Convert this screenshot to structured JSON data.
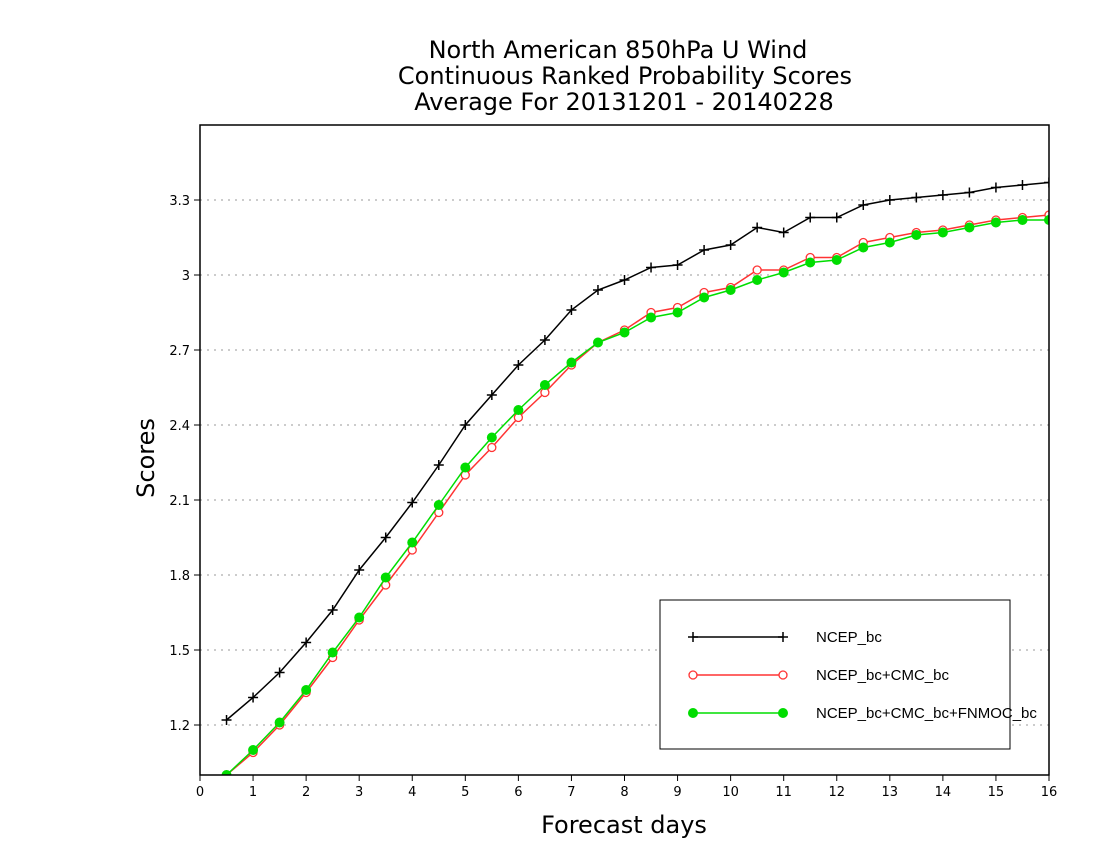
{
  "chart_data": {
    "type": "line",
    "title": [
      "North American 850hPa U Wind",
      "Continuous Ranked Probability Scores",
      "Average For 20131201 - 20140228"
    ],
    "xlabel": "Forecast days",
    "ylabel": "Scores",
    "xlim": [
      0,
      16
    ],
    "ylim": [
      1.0,
      3.6
    ],
    "x_ticks": [
      0,
      1,
      2,
      3,
      4,
      5,
      6,
      7,
      8,
      9,
      10,
      11,
      12,
      13,
      14,
      15,
      16
    ],
    "y_ticks": [
      1.2,
      1.5,
      1.8,
      2.1,
      2.4,
      2.7,
      3.0,
      3.3
    ],
    "y_tick_labels": [
      "1.2",
      "1.5",
      "1.8",
      "2.1",
      "2.4",
      "2.7",
      "3",
      "3.3"
    ],
    "grid": "horizontal dotted",
    "legend_position": "bottom-right",
    "x": [
      0.5,
      1,
      1.5,
      2,
      2.5,
      3,
      3.5,
      4,
      4.5,
      5,
      5.5,
      6,
      6.5,
      7,
      7.5,
      8,
      8.5,
      9,
      9.5,
      10,
      10.5,
      11,
      11.5,
      12,
      12.5,
      13,
      13.5,
      14,
      14.5,
      15,
      15.5,
      16
    ],
    "series": [
      {
        "name": "NCEP_bc",
        "color": "#000000",
        "marker": "plus",
        "values": [
          1.22,
          1.31,
          1.41,
          1.53,
          1.66,
          1.82,
          1.95,
          2.09,
          2.24,
          2.4,
          2.52,
          2.64,
          2.74,
          2.86,
          2.94,
          2.98,
          3.03,
          3.04,
          3.1,
          3.12,
          3.19,
          3.17,
          3.23,
          3.23,
          3.28,
          3.3,
          3.31,
          3.32,
          3.33,
          3.35,
          3.36,
          3.37
        ]
      },
      {
        "name": "NCEP_bc+CMC_bc",
        "color": "#ff3333",
        "marker": "open-circle",
        "values": [
          1.0,
          1.09,
          1.2,
          1.33,
          1.47,
          1.62,
          1.76,
          1.9,
          2.05,
          2.2,
          2.31,
          2.43,
          2.53,
          2.64,
          2.73,
          2.78,
          2.85,
          2.87,
          2.93,
          2.95,
          3.02,
          3.02,
          3.07,
          3.07,
          3.13,
          3.15,
          3.17,
          3.18,
          3.2,
          3.22,
          3.23,
          3.24
        ]
      },
      {
        "name": "NCEP_bc+CMC_bc+FNMOC_bc",
        "color": "#00dd00",
        "marker": "filled-circle",
        "values": [
          1.0,
          1.1,
          1.21,
          1.34,
          1.49,
          1.63,
          1.79,
          1.93,
          2.08,
          2.23,
          2.35,
          2.46,
          2.56,
          2.65,
          2.73,
          2.77,
          2.83,
          2.85,
          2.91,
          2.94,
          2.98,
          3.01,
          3.05,
          3.06,
          3.11,
          3.13,
          3.16,
          3.17,
          3.19,
          3.21,
          3.22,
          3.22
        ]
      }
    ]
  }
}
